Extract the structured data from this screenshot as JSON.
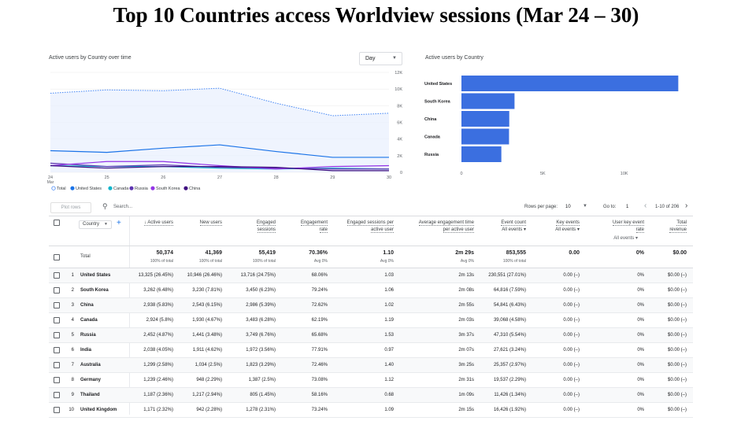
{
  "slide": {
    "title": "Top 10 Countries access Worldview sessions (Mar 24 – 30)"
  },
  "line_card": {
    "title": "Active users by Country over time",
    "granularity": "Day"
  },
  "bar_card": {
    "title": "Active users by Country"
  },
  "chart_data": [
    {
      "type": "line",
      "title": "Active users by Country over time",
      "x": [
        "24 Mar",
        "25",
        "26",
        "27",
        "28",
        "29",
        "30"
      ],
      "x_tick_labels": [
        "24",
        "25",
        "26",
        "27",
        "28",
        "29",
        "30"
      ],
      "x_sub_label": "Mar",
      "y_tick_labels": [
        "0",
        "2K",
        "4K",
        "6K",
        "8K",
        "10K",
        "12K"
      ],
      "ylim": [
        0,
        12000
      ],
      "legend_position": "bottom",
      "series": [
        {
          "name": "Total",
          "values": [
            9500,
            9900,
            9800,
            10100,
            8300,
            6800,
            7100
          ],
          "color": "#4285f4",
          "dashed": true
        },
        {
          "name": "United States",
          "values": [
            2600,
            2400,
            2900,
            3300,
            2500,
            1800,
            1800
          ],
          "color": "#1a73e8"
        },
        {
          "name": "Canada",
          "values": [
            800,
            700,
            700,
            500,
            400,
            500,
            400
          ],
          "color": "#12b5cb"
        },
        {
          "name": "Russia",
          "values": [
            1100,
            700,
            900,
            600,
            500,
            400,
            400
          ],
          "color": "#5e35b1"
        },
        {
          "name": "South Korea",
          "values": [
            800,
            1300,
            1300,
            800,
            400,
            700,
            800
          ],
          "color": "#9334e6"
        },
        {
          "name": "China",
          "values": [
            800,
            500,
            700,
            700,
            600,
            200,
            200
          ],
          "color": "#3f0e80"
        }
      ]
    },
    {
      "type": "bar",
      "title": "Active users by Country",
      "orientation": "horizontal",
      "categories": [
        "United States",
        "South Korea",
        "China",
        "Canada",
        "Russia"
      ],
      "values": [
        13325,
        3262,
        2938,
        2924,
        2452
      ],
      "x_tick_labels": [
        "0",
        "5K",
        "10K"
      ],
      "xlim": [
        0,
        13500
      ],
      "color": "#3b6fe0"
    }
  ],
  "toolbar": {
    "plot_rows": "Plot rows",
    "search_placeholder": "Search...",
    "rows_per_page_label": "Rows per page:",
    "rows_per_page": "10",
    "goto_label": "Go to:",
    "goto_value": "1",
    "page_range": "1-10 of 206"
  },
  "table": {
    "dimension": "Country",
    "headers": [
      {
        "l1": "↓ Active users",
        "l2": ""
      },
      {
        "l1": "New users",
        "l2": ""
      },
      {
        "l1": "Engaged",
        "l2": "sessions"
      },
      {
        "l1": "Engagement",
        "l2": "rate"
      },
      {
        "l1": "Engaged sessions per",
        "l2": "active user"
      },
      {
        "l1": "Average engagement time",
        "l2": "per active user"
      },
      {
        "l1": "Event count",
        "l2": "All events ▾"
      },
      {
        "l1": "Key events",
        "l2": "All events ▾"
      },
      {
        "l1": "User key event",
        "l2": "rate"
      },
      {
        "l1": "Total",
        "l2": "revenue"
      }
    ],
    "key_rate_sub": "All events ▾",
    "totals": {
      "label": "Total",
      "values": [
        {
          "main": "50,374",
          "sub": "100% of total"
        },
        {
          "main": "41,369",
          "sub": "100% of total"
        },
        {
          "main": "55,419",
          "sub": "100% of total"
        },
        {
          "main": "70.36%",
          "sub": "Avg 0%"
        },
        {
          "main": "1.10",
          "sub": "Avg 0%"
        },
        {
          "main": "2m 29s",
          "sub": "Avg 0%"
        },
        {
          "main": "853,555",
          "sub": "100% of total"
        },
        {
          "main": "0.00",
          "sub": ""
        },
        {
          "main": "0%",
          "sub": ""
        },
        {
          "main": "$0.00",
          "sub": ""
        }
      ]
    },
    "rows": [
      {
        "rank": "1",
        "country": "United States",
        "cells": [
          "13,325 (26.45%)",
          "10,946 (26.46%)",
          "13,716 (24.75%)",
          "68.06%",
          "1.03",
          "2m 13s",
          "230,551 (27.01%)",
          "0.00 (–)",
          "0%",
          "$0.00 (–)"
        ]
      },
      {
        "rank": "2",
        "country": "South Korea",
        "cells": [
          "3,262 (6.48%)",
          "3,230 (7.81%)",
          "3,450 (6.23%)",
          "79.24%",
          "1.06",
          "2m 08s",
          "64,816 (7.59%)",
          "0.00 (–)",
          "0%",
          "$0.00 (–)"
        ]
      },
      {
        "rank": "3",
        "country": "China",
        "cells": [
          "2,938 (5.83%)",
          "2,543 (6.15%)",
          "2,986 (5.39%)",
          "72.62%",
          "1.02",
          "2m 55s",
          "54,841 (6.43%)",
          "0.00 (–)",
          "0%",
          "$0.00 (–)"
        ]
      },
      {
        "rank": "4",
        "country": "Canada",
        "cells": [
          "2,924 (5.8%)",
          "1,930 (4.67%)",
          "3,483 (6.28%)",
          "62.19%",
          "1.19",
          "2m 03s",
          "39,068 (4.58%)",
          "0.00 (–)",
          "0%",
          "$0.00 (–)"
        ]
      },
      {
        "rank": "5",
        "country": "Russia",
        "cells": [
          "2,452 (4.87%)",
          "1,441 (3.48%)",
          "3,749 (6.76%)",
          "65.68%",
          "1.53",
          "3m 37s",
          "47,310 (5.54%)",
          "0.00 (–)",
          "0%",
          "$0.00 (–)"
        ]
      },
      {
        "rank": "6",
        "country": "India",
        "cells": [
          "2,038 (4.05%)",
          "1,911 (4.62%)",
          "1,972 (3.56%)",
          "77.91%",
          "0.97",
          "2m 07s",
          "27,621 (3.24%)",
          "0.00 (–)",
          "0%",
          "$0.00 (–)"
        ]
      },
      {
        "rank": "7",
        "country": "Australia",
        "cells": [
          "1,299 (2.58%)",
          "1,034 (2.5%)",
          "1,823 (3.29%)",
          "72.46%",
          "1.40",
          "3m 25s",
          "25,357 (2.97%)",
          "0.00 (–)",
          "0%",
          "$0.00 (–)"
        ]
      },
      {
        "rank": "8",
        "country": "Germany",
        "cells": [
          "1,239 (2.46%)",
          "948 (2.29%)",
          "1,387 (2.5%)",
          "73.08%",
          "1.12",
          "2m 31s",
          "19,537 (2.29%)",
          "0.00 (–)",
          "0%",
          "$0.00 (–)"
        ]
      },
      {
        "rank": "9",
        "country": "Thailand",
        "cells": [
          "1,187 (2.36%)",
          "1,217 (2.94%)",
          "805 (1.45%)",
          "58.16%",
          "0.68",
          "1m 09s",
          "11,426 (1.34%)",
          "0.00 (–)",
          "0%",
          "$0.00 (–)"
        ]
      },
      {
        "rank": "10",
        "country": "United Kingdom",
        "cells": [
          "1,171 (2.32%)",
          "942 (2.28%)",
          "1,278 (2.31%)",
          "73.24%",
          "1.09",
          "2m 15s",
          "16,426 (1.92%)",
          "0.00 (–)",
          "0%",
          "$0.00 (–)"
        ]
      }
    ]
  }
}
